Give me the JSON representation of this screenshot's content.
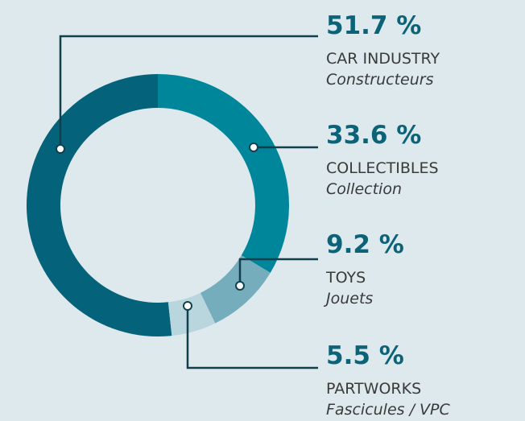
{
  "chart_data": {
    "type": "donut",
    "categories": [
      "CAR INDUSTRY",
      "COLLECTIBLES",
      "TOYS",
      "PARTWORKS"
    ],
    "subcategories": [
      "Constructeurs",
      "Collection",
      "Jouets",
      "Fascicules / VPC"
    ],
    "values": [
      51.7,
      33.6,
      9.2,
      5.5
    ],
    "value_labels": [
      "51.7 %",
      "33.6 %",
      "9.2 %",
      "5.5 %"
    ],
    "colors": [
      "#04637a",
      "#00869a",
      "#76adbc",
      "#b9d5de"
    ]
  }
}
